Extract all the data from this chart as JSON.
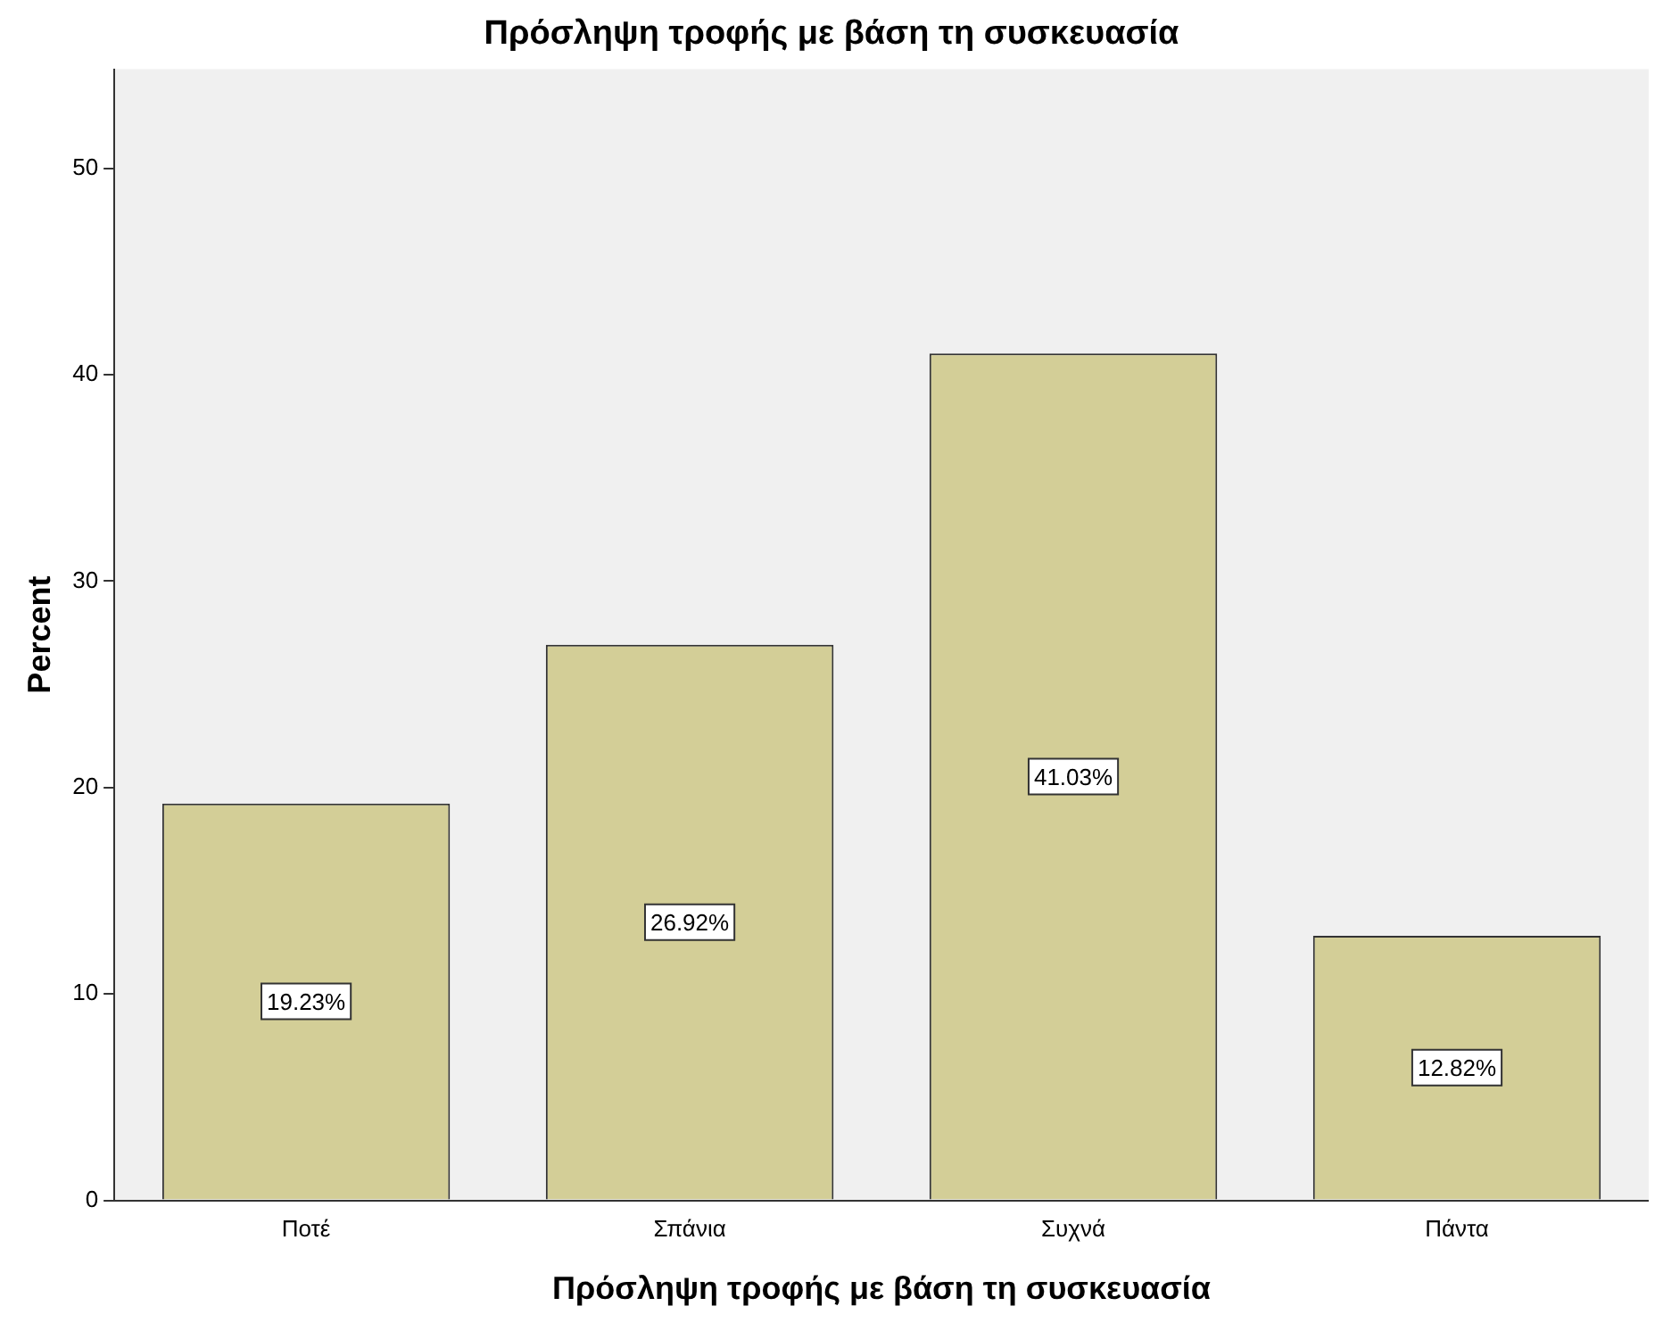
{
  "chart_data": {
    "type": "bar",
    "title": "Πρόσληψη τροφής με βάση τη συσκευασία",
    "xlabel": "Πρόσληψη τροφής με βάση τη συσκευασία",
    "ylabel": "Percent",
    "categories": [
      "Ποτέ",
      "Σπάνια",
      "Συχνά",
      "Πάντα"
    ],
    "values": [
      19.23,
      26.92,
      41.03,
      12.82
    ],
    "value_labels": [
      "19.23%",
      "26.92%",
      "41.03%",
      "12.82%"
    ],
    "color": "#d3ce97",
    "ylim": [
      0,
      54.8
    ],
    "yticks": [
      0,
      10,
      20,
      30,
      40,
      50
    ],
    "grid": false,
    "legend": false
  }
}
